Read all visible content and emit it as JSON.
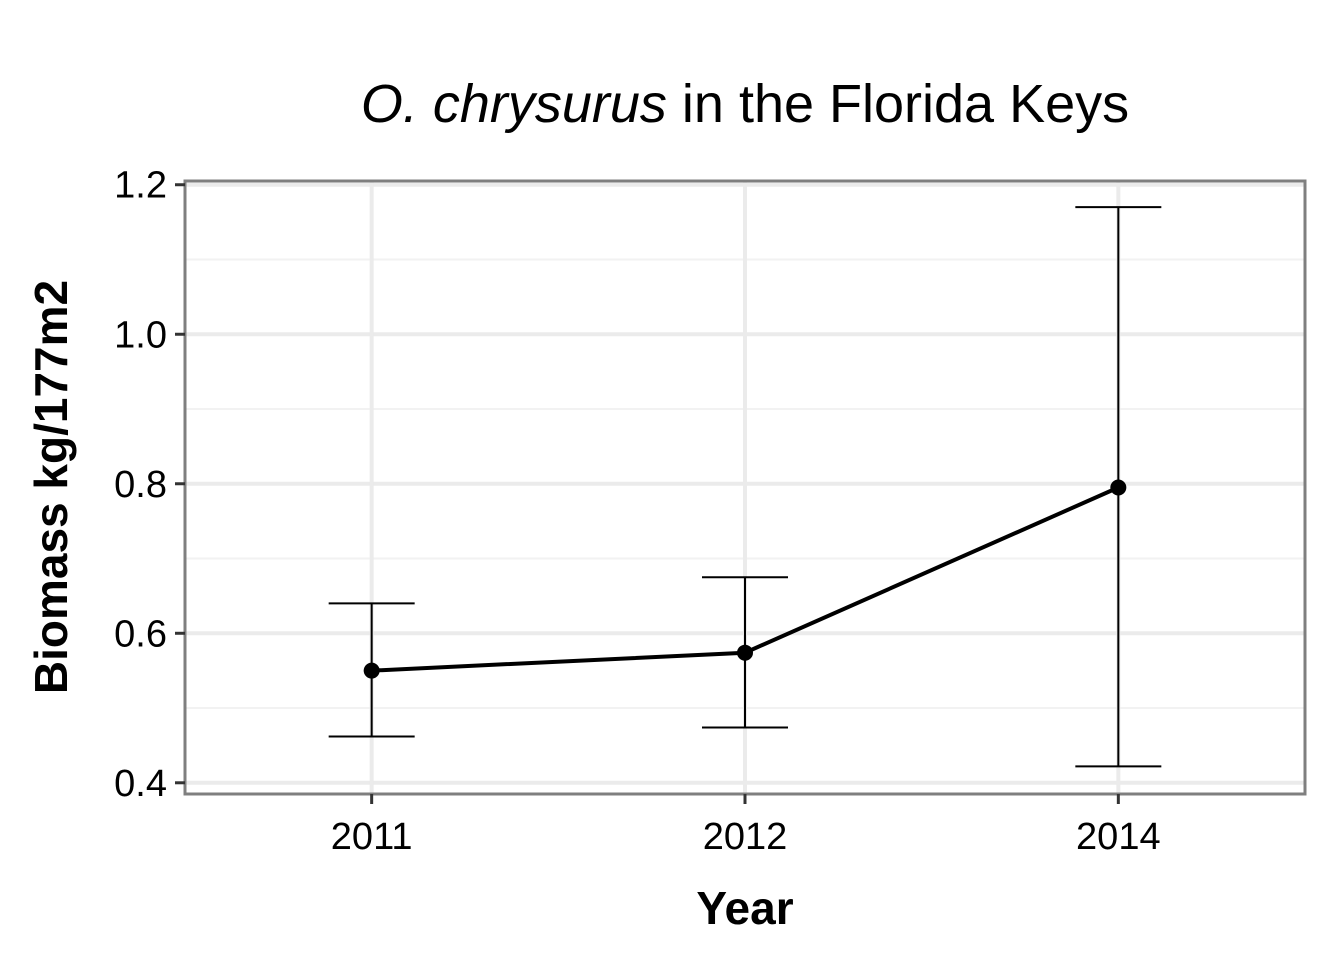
{
  "chart_data": {
    "type": "line",
    "title_italic": "O. chrysurus",
    "title_rest": " in the Florida Keys",
    "xlabel": "Year",
    "ylabel": "Biomass kg/177m2",
    "categories": [
      "2011",
      "2012",
      "2014"
    ],
    "series": [
      {
        "values": [
          0.55,
          0.574,
          0.795
        ],
        "error_low": [
          0.462,
          0.474,
          0.422
        ],
        "error_high": [
          0.64,
          0.675,
          1.17
        ]
      }
    ],
    "ylim": [
      0.385,
      1.205
    ],
    "yticks": [
      0.4,
      0.6,
      0.8,
      1.0,
      1.2
    ],
    "ytick_labels": [
      "0.4",
      "0.6",
      "0.8",
      "1.0",
      "1.2"
    ],
    "yminor_ticks": [
      0.5,
      0.7,
      0.9,
      1.1
    ],
    "grid": true,
    "legend": "none"
  }
}
